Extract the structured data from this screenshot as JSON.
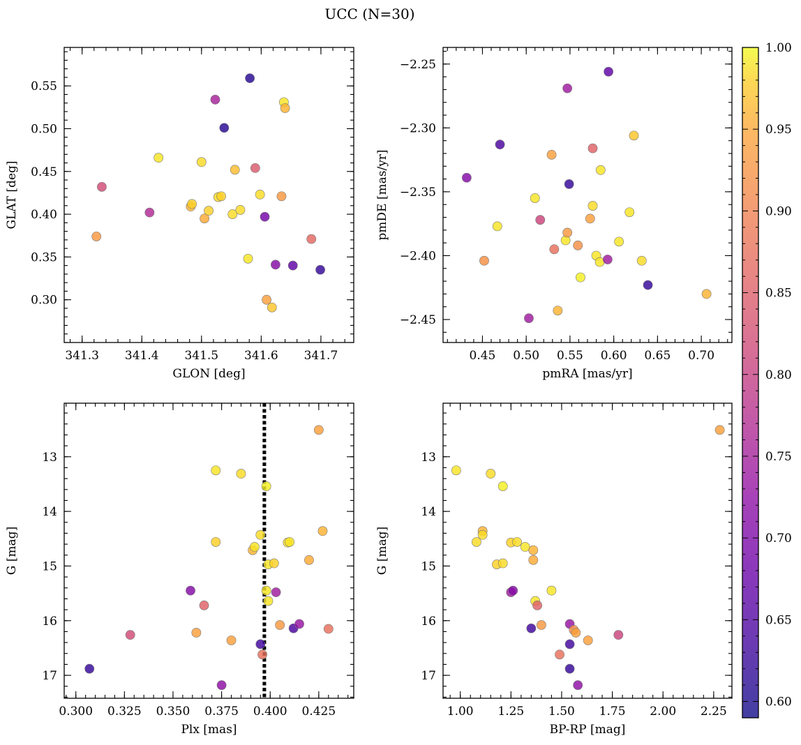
{
  "figure": {
    "title": "UCC (N=30)"
  },
  "colorbar": {
    "colormap": "plasma",
    "range": [
      0.59,
      1.0
    ],
    "ticks": [
      0.6,
      0.65,
      0.7,
      0.75,
      0.8,
      0.85,
      0.9,
      0.95,
      1.0
    ],
    "tick_labels": [
      "0.60",
      "0.65",
      "0.70",
      "0.75",
      "0.80",
      "0.85",
      "0.90",
      "0.95",
      "1.00"
    ]
  },
  "chart_data": [
    {
      "type": "scatter",
      "title": "",
      "xlabel": "GLON [deg]",
      "ylabel": "GLAT [deg]",
      "xlim": [
        341.27,
        341.755
      ],
      "ylim": [
        0.25,
        0.595
      ],
      "xticks": [
        341.3,
        341.4,
        341.5,
        341.6,
        341.7
      ],
      "xtick_labels": [
        "341.3",
        "341.4",
        "341.5",
        "341.6",
        "341.7"
      ],
      "yticks": [
        0.3,
        0.35,
        0.4,
        0.45,
        0.5,
        0.55
      ],
      "ytick_labels": [
        "0.30",
        "0.35",
        "0.40",
        "0.45",
        "0.50",
        "0.55"
      ],
      "points": [
        {
          "x": 341.333,
          "y": 0.432,
          "c": 0.8
        },
        {
          "x": 341.324,
          "y": 0.374,
          "c": 0.9
        },
        {
          "x": 341.413,
          "y": 0.402,
          "c": 0.75
        },
        {
          "x": 341.428,
          "y": 0.466,
          "c": 0.98
        },
        {
          "x": 341.482,
          "y": 0.409,
          "c": 0.93
        },
        {
          "x": 341.484,
          "y": 0.412,
          "c": 0.96
        },
        {
          "x": 341.5,
          "y": 0.461,
          "c": 0.97
        },
        {
          "x": 341.505,
          "y": 0.395,
          "c": 0.92
        },
        {
          "x": 341.512,
          "y": 0.404,
          "c": 0.96
        },
        {
          "x": 341.523,
          "y": 0.534,
          "c": 0.74
        },
        {
          "x": 341.528,
          "y": 0.42,
          "c": 0.97
        },
        {
          "x": 341.533,
          "y": 0.421,
          "c": 0.96
        },
        {
          "x": 341.538,
          "y": 0.501,
          "c": 0.61
        },
        {
          "x": 341.552,
          "y": 0.4,
          "c": 0.97
        },
        {
          "x": 341.556,
          "y": 0.452,
          "c": 0.94
        },
        {
          "x": 341.565,
          "y": 0.405,
          "c": 0.97
        },
        {
          "x": 341.578,
          "y": 0.348,
          "c": 0.98
        },
        {
          "x": 341.581,
          "y": 0.559,
          "c": 0.61
        },
        {
          "x": 341.59,
          "y": 0.454,
          "c": 0.82
        },
        {
          "x": 341.598,
          "y": 0.423,
          "c": 0.97
        },
        {
          "x": 341.606,
          "y": 0.397,
          "c": 0.68
        },
        {
          "x": 341.609,
          "y": 0.3,
          "c": 0.91
        },
        {
          "x": 341.618,
          "y": 0.291,
          "c": 0.95
        },
        {
          "x": 341.624,
          "y": 0.341,
          "c": 0.7
        },
        {
          "x": 341.634,
          "y": 0.421,
          "c": 0.9
        },
        {
          "x": 341.638,
          "y": 0.531,
          "c": 0.98
        },
        {
          "x": 341.64,
          "y": 0.524,
          "c": 0.93
        },
        {
          "x": 341.653,
          "y": 0.34,
          "c": 0.66
        },
        {
          "x": 341.684,
          "y": 0.371,
          "c": 0.84
        },
        {
          "x": 341.699,
          "y": 0.335,
          "c": 0.62
        }
      ]
    },
    {
      "type": "scatter",
      "title": "",
      "xlabel": "pmRA [mas/yr]",
      "ylabel": "pmDE [mas/yr]",
      "xlim": [
        0.405,
        0.735
      ],
      "ylim": [
        -2.468,
        -2.237
      ],
      "xticks": [
        0.45,
        0.5,
        0.55,
        0.6,
        0.65,
        0.7
      ],
      "xtick_labels": [
        "0.45",
        "0.50",
        "0.55",
        "0.60",
        "0.65",
        "0.70"
      ],
      "yticks": [
        -2.45,
        -2.4,
        -2.35,
        -2.3,
        -2.25
      ],
      "ytick_labels": [
        "−2.45",
        "−2.40",
        "−2.35",
        "−2.30",
        "−2.25"
      ],
      "points": [
        {
          "x": 0.432,
          "y": -2.339,
          "c": 0.7
        },
        {
          "x": 0.452,
          "y": -2.404,
          "c": 0.89
        },
        {
          "x": 0.467,
          "y": -2.377,
          "c": 0.98
        },
        {
          "x": 0.47,
          "y": -2.313,
          "c": 0.64
        },
        {
          "x": 0.503,
          "y": -2.449,
          "c": 0.73
        },
        {
          "x": 0.51,
          "y": -2.355,
          "c": 0.98
        },
        {
          "x": 0.516,
          "y": -2.372,
          "c": 0.79
        },
        {
          "x": 0.529,
          "y": -2.321,
          "c": 0.91
        },
        {
          "x": 0.532,
          "y": -2.395,
          "c": 0.85
        },
        {
          "x": 0.536,
          "y": -2.443,
          "c": 0.93
        },
        {
          "x": 0.545,
          "y": -2.388,
          "c": 0.98
        },
        {
          "x": 0.547,
          "y": -2.382,
          "c": 0.9
        },
        {
          "x": 0.547,
          "y": -2.269,
          "c": 0.73
        },
        {
          "x": 0.549,
          "y": -2.344,
          "c": 0.62
        },
        {
          "x": 0.559,
          "y": -2.392,
          "c": 0.89
        },
        {
          "x": 0.562,
          "y": -2.417,
          "c": 0.99
        },
        {
          "x": 0.573,
          "y": -2.371,
          "c": 0.91
        },
        {
          "x": 0.576,
          "y": -2.361,
          "c": 0.97
        },
        {
          "x": 0.576,
          "y": -2.316,
          "c": 0.83
        },
        {
          "x": 0.58,
          "y": -2.4,
          "c": 0.98
        },
        {
          "x": 0.584,
          "y": -2.405,
          "c": 0.98
        },
        {
          "x": 0.585,
          "y": -2.333,
          "c": 0.98
        },
        {
          "x": 0.593,
          "y": -2.403,
          "c": 0.73
        },
        {
          "x": 0.594,
          "y": -2.256,
          "c": 0.66
        },
        {
          "x": 0.606,
          "y": -2.389,
          "c": 0.98
        },
        {
          "x": 0.618,
          "y": -2.366,
          "c": 0.98
        },
        {
          "x": 0.623,
          "y": -2.306,
          "c": 0.95
        },
        {
          "x": 0.632,
          "y": -2.404,
          "c": 0.97
        },
        {
          "x": 0.639,
          "y": -2.423,
          "c": 0.62
        },
        {
          "x": 0.706,
          "y": -2.43,
          "c": 0.93
        }
      ]
    },
    {
      "type": "scatter",
      "title": "",
      "xlabel": "Plx [mas]",
      "ylabel": "G [mag]",
      "xlim": [
        0.294,
        0.443
      ],
      "ylim": [
        17.42,
        12.02
      ],
      "xticks": [
        0.3,
        0.325,
        0.35,
        0.375,
        0.4,
        0.425
      ],
      "xtick_labels": [
        "0.300",
        "0.325",
        "0.350",
        "0.375",
        "0.400",
        "0.425"
      ],
      "yticks": [
        13,
        14,
        15,
        16,
        17
      ],
      "ytick_labels": [
        "13",
        "14",
        "15",
        "16",
        "17"
      ],
      "vline": {
        "x": 0.397,
        "style": "dotted",
        "color": "#000000"
      },
      "points": [
        {
          "x": 0.307,
          "y": 16.88,
          "c": 0.62
        },
        {
          "x": 0.328,
          "y": 16.26,
          "c": 0.8
        },
        {
          "x": 0.359,
          "y": 15.45,
          "c": 0.7
        },
        {
          "x": 0.362,
          "y": 16.22,
          "c": 0.91
        },
        {
          "x": 0.366,
          "y": 15.72,
          "c": 0.83
        },
        {
          "x": 0.372,
          "y": 14.56,
          "c": 0.96
        },
        {
          "x": 0.372,
          "y": 13.25,
          "c": 0.98
        },
        {
          "x": 0.375,
          "y": 17.18,
          "c": 0.71
        },
        {
          "x": 0.38,
          "y": 16.36,
          "c": 0.91
        },
        {
          "x": 0.385,
          "y": 13.31,
          "c": 0.97
        },
        {
          "x": 0.391,
          "y": 14.71,
          "c": 0.93
        },
        {
          "x": 0.392,
          "y": 14.65,
          "c": 0.98
        },
        {
          "x": 0.395,
          "y": 16.43,
          "c": 0.63
        },
        {
          "x": 0.395,
          "y": 14.43,
          "c": 0.97
        },
        {
          "x": 0.396,
          "y": 16.62,
          "c": 0.85
        },
        {
          "x": 0.398,
          "y": 13.54,
          "c": 0.99
        },
        {
          "x": 0.398,
          "y": 15.45,
          "c": 0.98
        },
        {
          "x": 0.399,
          "y": 15.64,
          "c": 0.98
        },
        {
          "x": 0.399,
          "y": 14.97,
          "c": 0.98
        },
        {
          "x": 0.402,
          "y": 14.95,
          "c": 0.96
        },
        {
          "x": 0.403,
          "y": 15.48,
          "c": 0.73
        },
        {
          "x": 0.405,
          "y": 16.08,
          "c": 0.9
        },
        {
          "x": 0.409,
          "y": 14.57,
          "c": 0.97
        },
        {
          "x": 0.41,
          "y": 14.56,
          "c": 0.98
        },
        {
          "x": 0.412,
          "y": 16.14,
          "c": 0.64
        },
        {
          "x": 0.415,
          "y": 16.06,
          "c": 0.72
        },
        {
          "x": 0.42,
          "y": 14.89,
          "c": 0.92
        },
        {
          "x": 0.425,
          "y": 12.51,
          "c": 0.91
        },
        {
          "x": 0.427,
          "y": 14.36,
          "c": 0.93
        },
        {
          "x": 0.43,
          "y": 16.15,
          "c": 0.85
        }
      ]
    },
    {
      "type": "scatter",
      "title": "",
      "xlabel": "BP-RP [mag]",
      "ylabel": "G [mag]",
      "xlim": [
        0.915,
        2.34
      ],
      "ylim": [
        17.42,
        12.02
      ],
      "xticks": [
        1.0,
        1.25,
        1.5,
        1.75,
        2.0,
        2.25
      ],
      "xtick_labels": [
        "1.00",
        "1.25",
        "1.50",
        "1.75",
        "2.00",
        "2.25"
      ],
      "yticks": [
        13,
        14,
        15,
        16,
        17
      ],
      "ytick_labels": [
        "13",
        "14",
        "15",
        "16",
        "17"
      ],
      "points": [
        {
          "x": 0.98,
          "y": 13.25,
          "c": 0.98
        },
        {
          "x": 1.08,
          "y": 14.56,
          "c": 0.97
        },
        {
          "x": 1.11,
          "y": 14.36,
          "c": 0.93
        },
        {
          "x": 1.11,
          "y": 14.43,
          "c": 0.97
        },
        {
          "x": 1.15,
          "y": 13.31,
          "c": 0.97
        },
        {
          "x": 1.18,
          "y": 14.97,
          "c": 0.96
        },
        {
          "x": 1.21,
          "y": 14.95,
          "c": 0.97
        },
        {
          "x": 1.21,
          "y": 13.54,
          "c": 0.99
        },
        {
          "x": 1.25,
          "y": 15.48,
          "c": 0.73
        },
        {
          "x": 1.25,
          "y": 14.57,
          "c": 0.96
        },
        {
          "x": 1.26,
          "y": 15.45,
          "c": 0.7
        },
        {
          "x": 1.28,
          "y": 14.56,
          "c": 0.97
        },
        {
          "x": 1.32,
          "y": 14.65,
          "c": 0.98
        },
        {
          "x": 1.35,
          "y": 16.14,
          "c": 0.63
        },
        {
          "x": 1.36,
          "y": 14.71,
          "c": 0.93
        },
        {
          "x": 1.36,
          "y": 14.89,
          "c": 0.92
        },
        {
          "x": 1.37,
          "y": 15.64,
          "c": 0.98
        },
        {
          "x": 1.38,
          "y": 15.72,
          "c": 0.83
        },
        {
          "x": 1.4,
          "y": 16.08,
          "c": 0.9
        },
        {
          "x": 1.45,
          "y": 15.45,
          "c": 0.98
        },
        {
          "x": 1.49,
          "y": 16.62,
          "c": 0.85
        },
        {
          "x": 1.54,
          "y": 16.06,
          "c": 0.72
        },
        {
          "x": 1.54,
          "y": 16.43,
          "c": 0.63
        },
        {
          "x": 1.54,
          "y": 16.88,
          "c": 0.62
        },
        {
          "x": 1.56,
          "y": 16.17,
          "c": 0.89
        },
        {
          "x": 1.57,
          "y": 16.22,
          "c": 0.91
        },
        {
          "x": 1.58,
          "y": 17.18,
          "c": 0.71
        },
        {
          "x": 1.63,
          "y": 16.36,
          "c": 0.91
        },
        {
          "x": 1.78,
          "y": 16.26,
          "c": 0.79
        },
        {
          "x": 2.28,
          "y": 12.51,
          "c": 0.91
        }
      ]
    }
  ]
}
